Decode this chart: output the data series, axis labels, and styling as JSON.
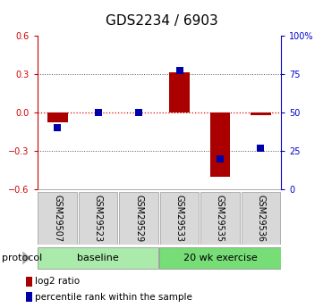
{
  "title": "GDS2234 / 6903",
  "samples": [
    "GSM29507",
    "GSM29523",
    "GSM29529",
    "GSM29533",
    "GSM29535",
    "GSM29536"
  ],
  "log2_ratio": [
    -0.08,
    0.0,
    0.0,
    0.31,
    -0.5,
    -0.02
  ],
  "percentile_rank": [
    40,
    50,
    50,
    77,
    20,
    27
  ],
  "ylim_left": [
    -0.6,
    0.6
  ],
  "ylim_right": [
    0,
    100
  ],
  "yticks_left": [
    -0.6,
    -0.3,
    0.0,
    0.3,
    0.6
  ],
  "yticks_right": [
    0,
    25,
    50,
    75,
    100
  ],
  "ytick_labels_right": [
    "0",
    "25",
    "50",
    "75",
    "100%"
  ],
  "groups": [
    {
      "label": "baseline",
      "start": 0,
      "end": 3,
      "color": "#AAEAAA"
    },
    {
      "label": "20 wk exercise",
      "start": 3,
      "end": 6,
      "color": "#77DD77"
    }
  ],
  "bar_color_red": "#AA0000",
  "bar_color_blue": "#0000AA",
  "zero_line_color": "#DD0000",
  "dotted_line_color": "#555555",
  "bar_width": 0.5,
  "blue_square_size": 30,
  "protocol_label": "protocol",
  "legend_red_label": "log2 ratio",
  "legend_blue_label": "percentile rank within the sample",
  "left_axis_color": "#CC0000",
  "right_axis_color": "#0000CC",
  "title_fontsize": 11,
  "tick_fontsize": 7,
  "label_fontsize": 8,
  "sample_label_fontsize": 7
}
